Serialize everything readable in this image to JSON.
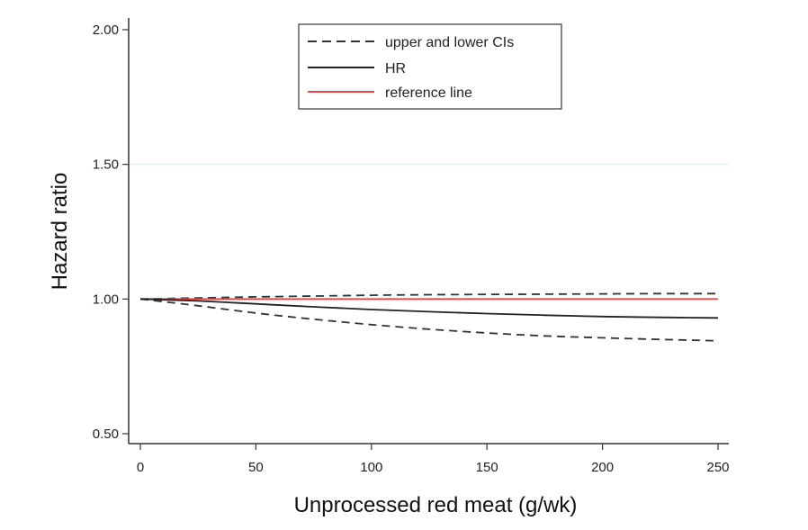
{
  "chart_data": {
    "type": "line",
    "xlabel": "Unprocessed red meat (g/wk)",
    "ylabel": "Hazard ratio",
    "xlim": [
      0,
      250
    ],
    "ylim": [
      0.5,
      2.0
    ],
    "x_ticks": [
      0,
      50,
      100,
      150,
      200,
      250
    ],
    "x_tick_labels": [
      "0",
      "50",
      "100",
      "150",
      "200",
      "250"
    ],
    "y_ticks": [
      0.5,
      1.0,
      1.5,
      2.0
    ],
    "y_tick_labels": [
      "0.50",
      "1.00",
      "1.50",
      "2.00"
    ],
    "grid": "faint horizontal line at 1.50",
    "legend_position": "top-center",
    "x": [
      0,
      25,
      50,
      75,
      100,
      125,
      150,
      175,
      200,
      225,
      250
    ],
    "series": [
      {
        "name": "upper and lower CIs",
        "style": "dashed",
        "color": "#333333",
        "values": [
          1.0,
          1.004,
          1.008,
          1.011,
          1.014,
          1.016,
          1.017,
          1.018,
          1.019,
          1.02,
          1.02
        ]
      },
      {
        "style": "dashed",
        "color": "#333333",
        "values": [
          1.0,
          0.975,
          0.948,
          0.925,
          0.905,
          0.888,
          0.874,
          0.863,
          0.856,
          0.85,
          0.845
        ]
      },
      {
        "name": "HR",
        "style": "solid",
        "color": "#222222",
        "values": [
          1.0,
          0.993,
          0.982,
          0.971,
          0.961,
          0.953,
          0.946,
          0.94,
          0.935,
          0.932,
          0.93
        ]
      },
      {
        "name": "reference line",
        "style": "solid",
        "color": "#e8464b",
        "values": [
          1.0,
          1.0,
          1.0,
          1.0,
          1.0,
          1.0,
          1.0,
          1.0,
          1.0,
          1.0,
          1.0
        ]
      }
    ]
  }
}
